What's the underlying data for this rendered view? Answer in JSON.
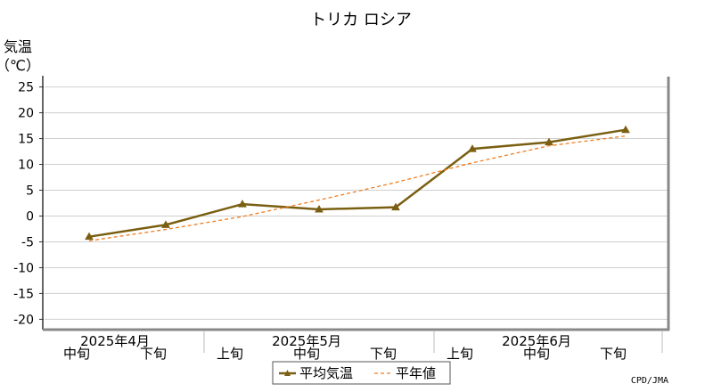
{
  "chart_data": {
    "type": "line",
    "title": "トリカ ロシア",
    "ylabel_line1": "気温",
    "ylabel_line2": "（℃）",
    "ylim": [
      -22,
      27
    ],
    "yticks": [
      25,
      20,
      15,
      10,
      5,
      0,
      -5,
      -10,
      -15,
      -20
    ],
    "grid": true,
    "categories": [
      "中旬",
      "下旬",
      "上旬",
      "中旬",
      "下旬",
      "上旬",
      "中旬",
      "下旬"
    ],
    "months": [
      {
        "label": "2025年4月",
        "start": 0,
        "end": 1
      },
      {
        "label": "2025年5月",
        "start": 2,
        "end": 4
      },
      {
        "label": "2025年6月",
        "start": 5,
        "end": 7
      }
    ],
    "series": [
      {
        "name": "平均気温",
        "color": "#7a5f12",
        "style": "solid-marker",
        "values": [
          -4.0,
          -1.7,
          2.3,
          1.3,
          1.7,
          13.0,
          14.3,
          16.7
        ]
      },
      {
        "name": "平年値",
        "color": "#f07d1e",
        "style": "dashed",
        "values": [
          -4.8,
          -2.6,
          -0.1,
          3.1,
          6.5,
          10.3,
          13.6,
          15.5
        ]
      }
    ],
    "legend_position": "bottom-center",
    "credit": "CPD/JMA"
  }
}
